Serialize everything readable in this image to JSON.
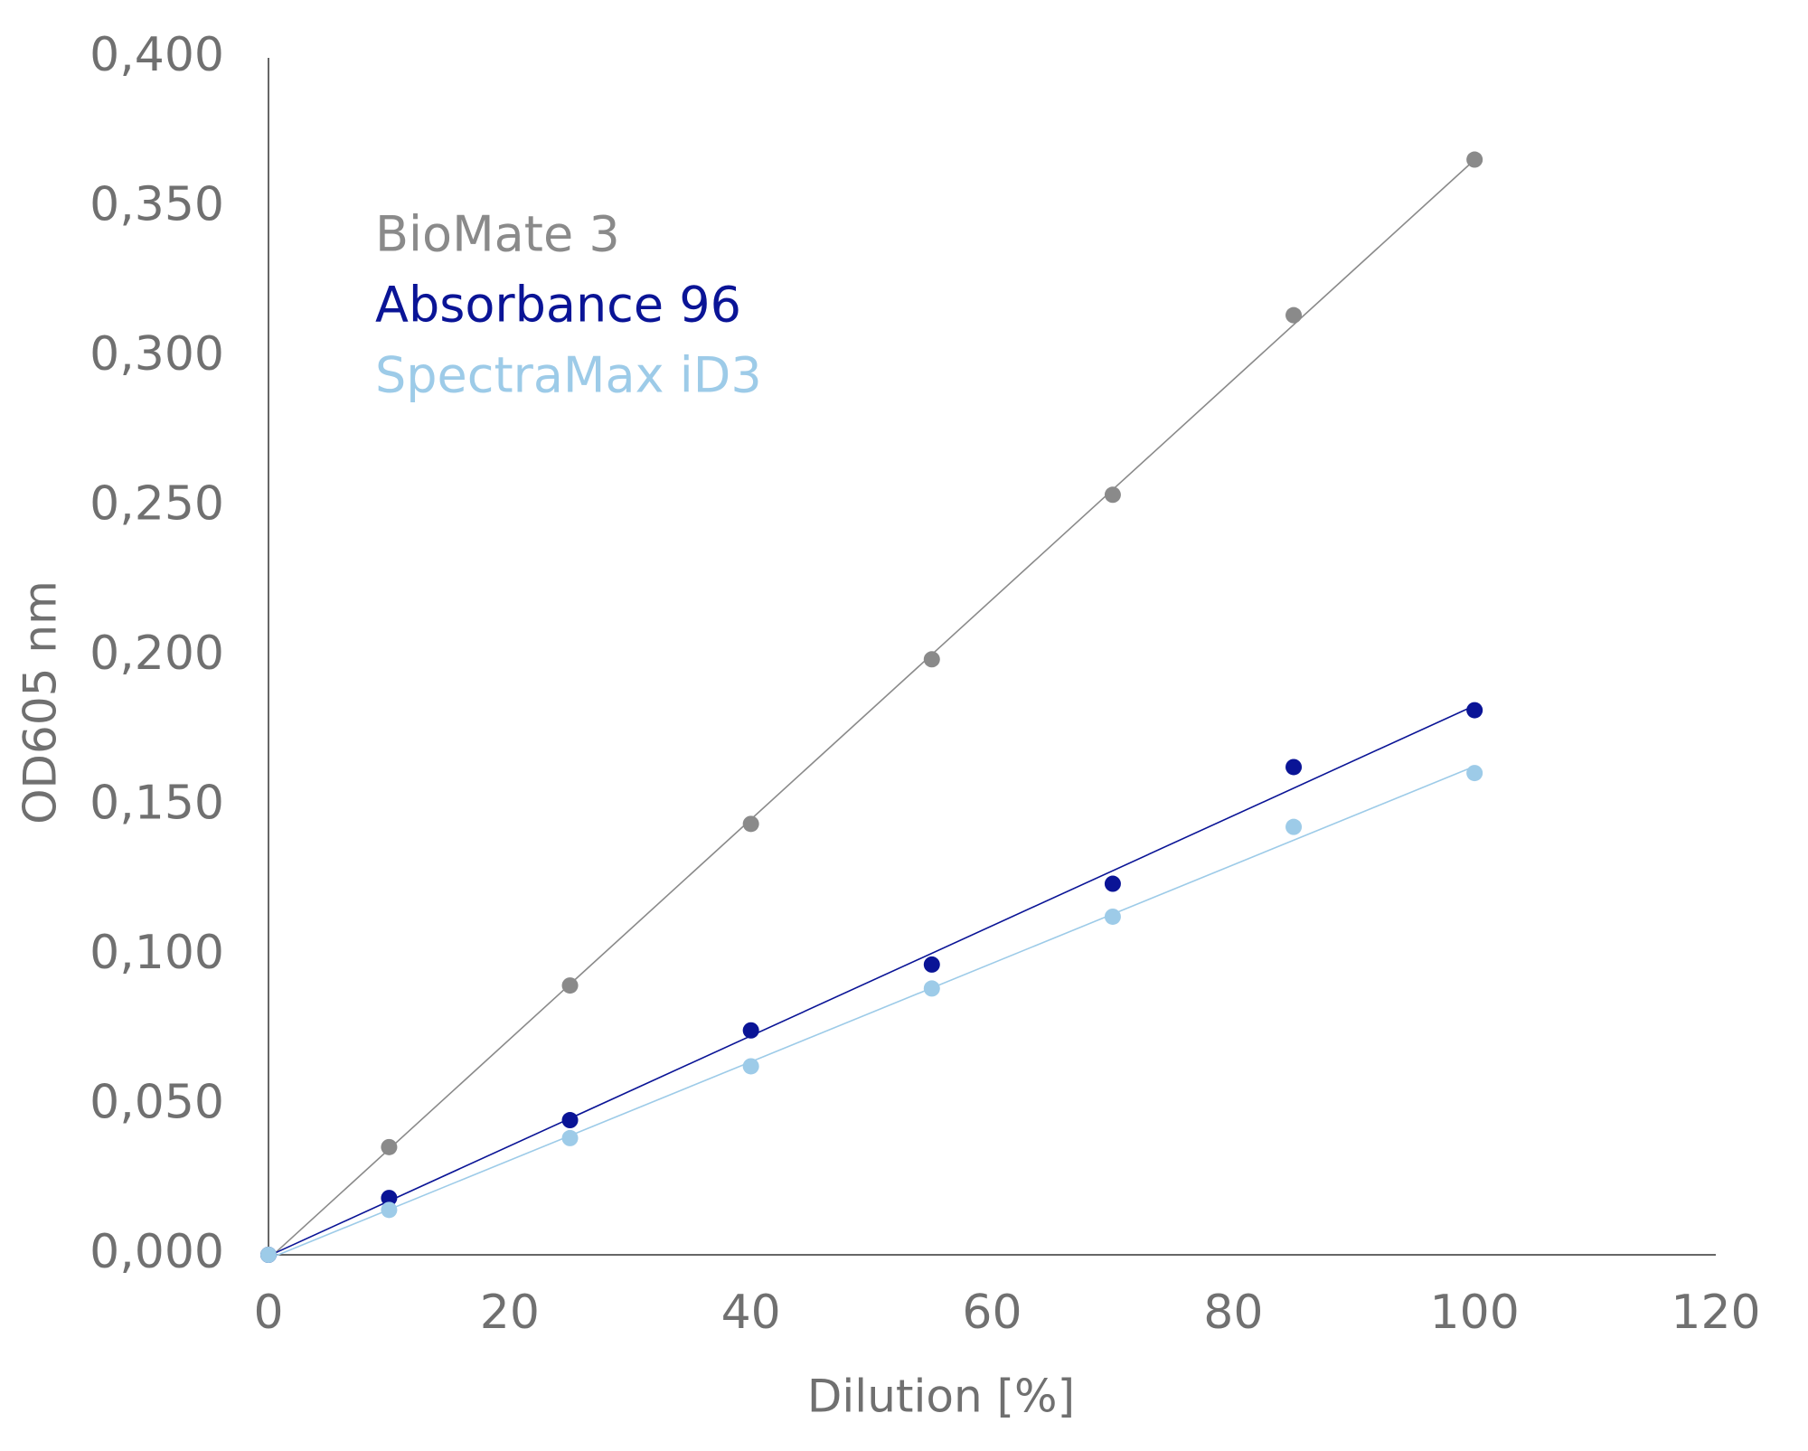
{
  "chart_data": {
    "type": "scatter",
    "x_label": "Dilution [%]",
    "y_label": "OD605 nm",
    "x": [
      0,
      10,
      25,
      40,
      55,
      70,
      85,
      100
    ],
    "series": [
      {
        "name": "BioMate 3",
        "color": "#8a8a8a",
        "values": [
          0,
          0.036,
          0.09,
          0.144,
          0.199,
          0.254,
          0.314,
          0.366
        ]
      },
      {
        "name": "Absorbance 96",
        "color": "#0a1496",
        "values": [
          0,
          0.019,
          0.045,
          0.075,
          0.097,
          0.124,
          0.163,
          0.182
        ]
      },
      {
        "name": "SpectraMax iD3",
        "color": "#9dcbe8",
        "values": [
          0,
          0.015,
          0.039,
          0.063,
          0.089,
          0.113,
          0.143,
          0.161
        ]
      }
    ],
    "xlim": [
      0,
      120
    ],
    "xticks": [
      0,
      20,
      40,
      60,
      80,
      100,
      120
    ],
    "ylim": [
      0,
      0.4
    ],
    "yticks": [
      {
        "value": 0,
        "label": "0,000"
      },
      {
        "value": 0.05,
        "label": "0,050"
      },
      {
        "value": 0.1,
        "label": "0,100"
      },
      {
        "value": 0.15,
        "label": "0,150"
      },
      {
        "value": 0.2,
        "label": "0,200"
      },
      {
        "value": 0.25,
        "label": "0,250"
      },
      {
        "value": 0.3,
        "label": "0,300"
      },
      {
        "value": 0.35,
        "label": "0,350"
      },
      {
        "value": 0.4,
        "label": "0,400"
      }
    ],
    "trendline": true,
    "legend": "upper left"
  }
}
